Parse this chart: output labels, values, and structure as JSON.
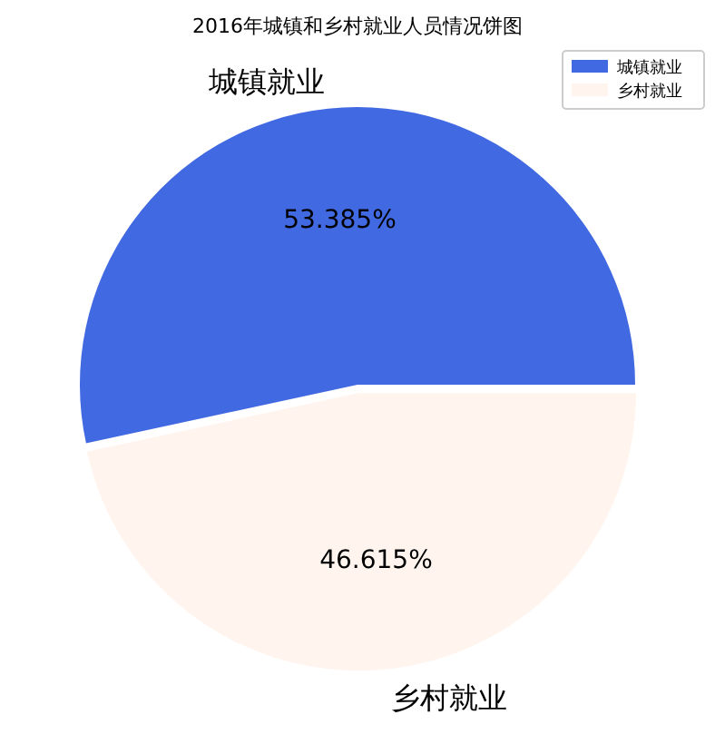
{
  "chart_data": {
    "type": "pie",
    "title": "2016年城镇和乡村就业人员情况饼图",
    "categories": [
      "城镇就业",
      "乡村就业"
    ],
    "values": [
      53.385,
      46.615
    ],
    "value_labels": [
      "53.385%",
      "46.615%"
    ],
    "colors": [
      "#4169e1",
      "#fff5ee"
    ],
    "legend": "top right"
  }
}
